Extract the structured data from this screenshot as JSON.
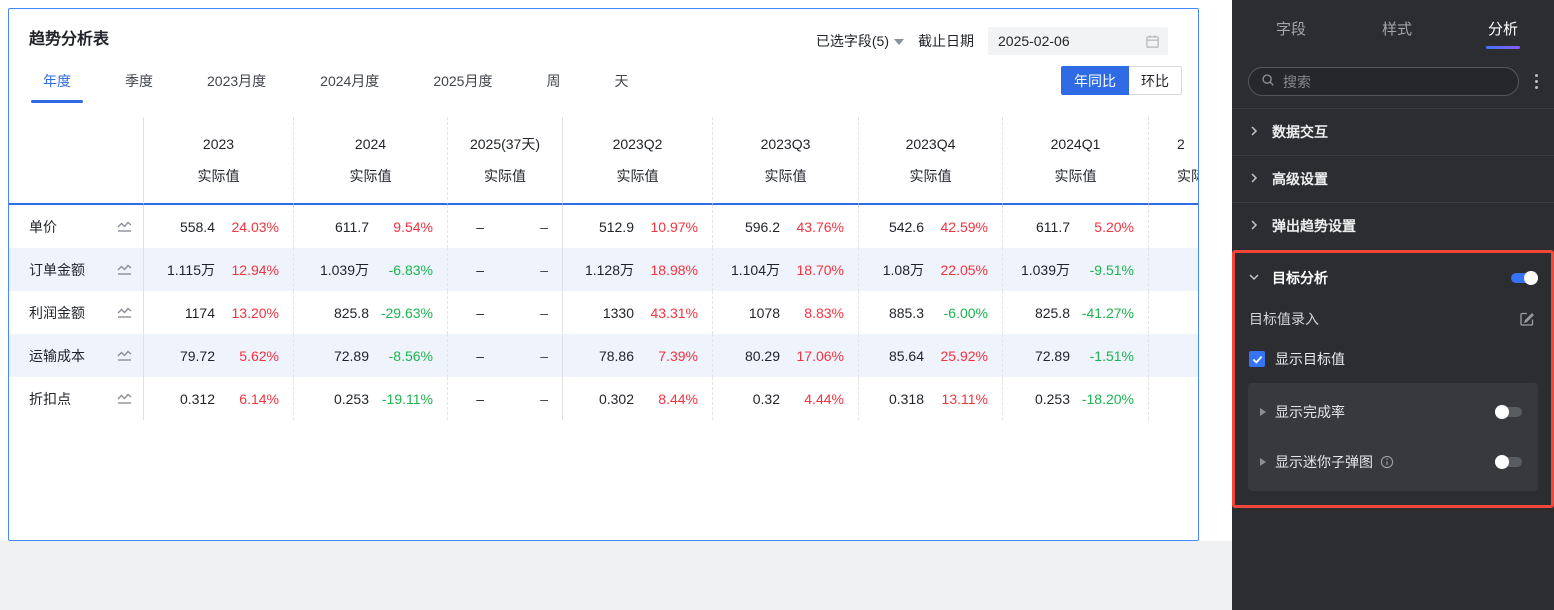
{
  "card": {
    "title": "趋势分析表",
    "field_selector": "已选字段(5)",
    "deadline_label": "截止日期",
    "deadline_value": "2025-02-06",
    "period_tabs": [
      "年度",
      "季度",
      "2023月度",
      "2024月度",
      "2025月度",
      "周",
      "天"
    ],
    "active_period_tab": "年度",
    "compare_options": [
      "年同比",
      "环比"
    ],
    "active_compare": "年同比"
  },
  "chart_data": {
    "type": "table",
    "title": "趋势分析表",
    "sub_header": "实际值",
    "columns": [
      "2023",
      "2024",
      "2025(37天)",
      "2023Q2",
      "2023Q3",
      "2023Q4",
      "2024Q1",
      "2"
    ],
    "rows": [
      {
        "label": "单价",
        "cells": [
          {
            "value": "558.4",
            "pct": "24.03%",
            "trend": "up"
          },
          {
            "value": "611.7",
            "pct": "9.54%",
            "trend": "up"
          },
          {
            "value": "–",
            "pct": "–",
            "trend": "flat"
          },
          {
            "value": "512.9",
            "pct": "10.97%",
            "trend": "up"
          },
          {
            "value": "596.2",
            "pct": "43.76%",
            "trend": "up"
          },
          {
            "value": "542.6",
            "pct": "42.59%",
            "trend": "up"
          },
          {
            "value": "611.7",
            "pct": "5.20%",
            "trend": "up"
          },
          {
            "value": "–",
            "pct": "",
            "trend": "flat"
          }
        ]
      },
      {
        "label": "订单金额",
        "cells": [
          {
            "value": "1.115万",
            "pct": "12.94%",
            "trend": "up"
          },
          {
            "value": "1.039万",
            "pct": "-6.83%",
            "trend": "down"
          },
          {
            "value": "–",
            "pct": "–",
            "trend": "flat"
          },
          {
            "value": "1.128万",
            "pct": "18.98%",
            "trend": "up"
          },
          {
            "value": "1.104万",
            "pct": "18.70%",
            "trend": "up"
          },
          {
            "value": "1.08万",
            "pct": "22.05%",
            "trend": "up"
          },
          {
            "value": "1.039万",
            "pct": "-9.51%",
            "trend": "down"
          },
          {
            "value": "–",
            "pct": "",
            "trend": "flat"
          }
        ]
      },
      {
        "label": "利润金额",
        "cells": [
          {
            "value": "1174",
            "pct": "13.20%",
            "trend": "up"
          },
          {
            "value": "825.8",
            "pct": "-29.63%",
            "trend": "down"
          },
          {
            "value": "–",
            "pct": "–",
            "trend": "flat"
          },
          {
            "value": "1330",
            "pct": "43.31%",
            "trend": "up"
          },
          {
            "value": "1078",
            "pct": "8.83%",
            "trend": "up"
          },
          {
            "value": "885.3",
            "pct": "-6.00%",
            "trend": "down"
          },
          {
            "value": "825.8",
            "pct": "-41.27%",
            "trend": "down"
          },
          {
            "value": "–",
            "pct": "",
            "trend": "flat"
          }
        ]
      },
      {
        "label": "运输成本",
        "cells": [
          {
            "value": "79.72",
            "pct": "5.62%",
            "trend": "up"
          },
          {
            "value": "72.89",
            "pct": "-8.56%",
            "trend": "down"
          },
          {
            "value": "–",
            "pct": "–",
            "trend": "flat"
          },
          {
            "value": "78.86",
            "pct": "7.39%",
            "trend": "up"
          },
          {
            "value": "80.29",
            "pct": "17.06%",
            "trend": "up"
          },
          {
            "value": "85.64",
            "pct": "25.92%",
            "trend": "up"
          },
          {
            "value": "72.89",
            "pct": "-1.51%",
            "trend": "down"
          },
          {
            "value": "–",
            "pct": "",
            "trend": "flat"
          }
        ]
      },
      {
        "label": "折扣点",
        "cells": [
          {
            "value": "0.312",
            "pct": "6.14%",
            "trend": "up"
          },
          {
            "value": "0.253",
            "pct": "-19.11%",
            "trend": "down"
          },
          {
            "value": "–",
            "pct": "–",
            "trend": "flat"
          },
          {
            "value": "0.302",
            "pct": "8.44%",
            "trend": "up"
          },
          {
            "value": "0.32",
            "pct": "4.44%",
            "trend": "up"
          },
          {
            "value": "0.318",
            "pct": "13.11%",
            "trend": "up"
          },
          {
            "value": "0.253",
            "pct": "-18.20%",
            "trend": "down"
          },
          {
            "value": "–",
            "pct": "",
            "trend": "flat"
          }
        ]
      }
    ],
    "colors": {
      "up": "#f5333f",
      "down": "#1db350",
      "accent": "#2f6be5"
    }
  },
  "panel": {
    "tabs": [
      "字段",
      "样式",
      "分析"
    ],
    "active_tab": "分析",
    "search_placeholder": "搜索",
    "sections": [
      "数据交互",
      "高级设置",
      "弹出趋势设置"
    ],
    "target": {
      "title": "目标分析",
      "enabled": true,
      "entry_label": "目标值录入",
      "checkbox_label": "显示目标值",
      "checkbox_checked": true,
      "sub_items": [
        {
          "label": "显示完成率",
          "info": false,
          "enabled": false
        },
        {
          "label": "显示迷你子弹图",
          "info": true,
          "enabled": false
        }
      ]
    }
  }
}
